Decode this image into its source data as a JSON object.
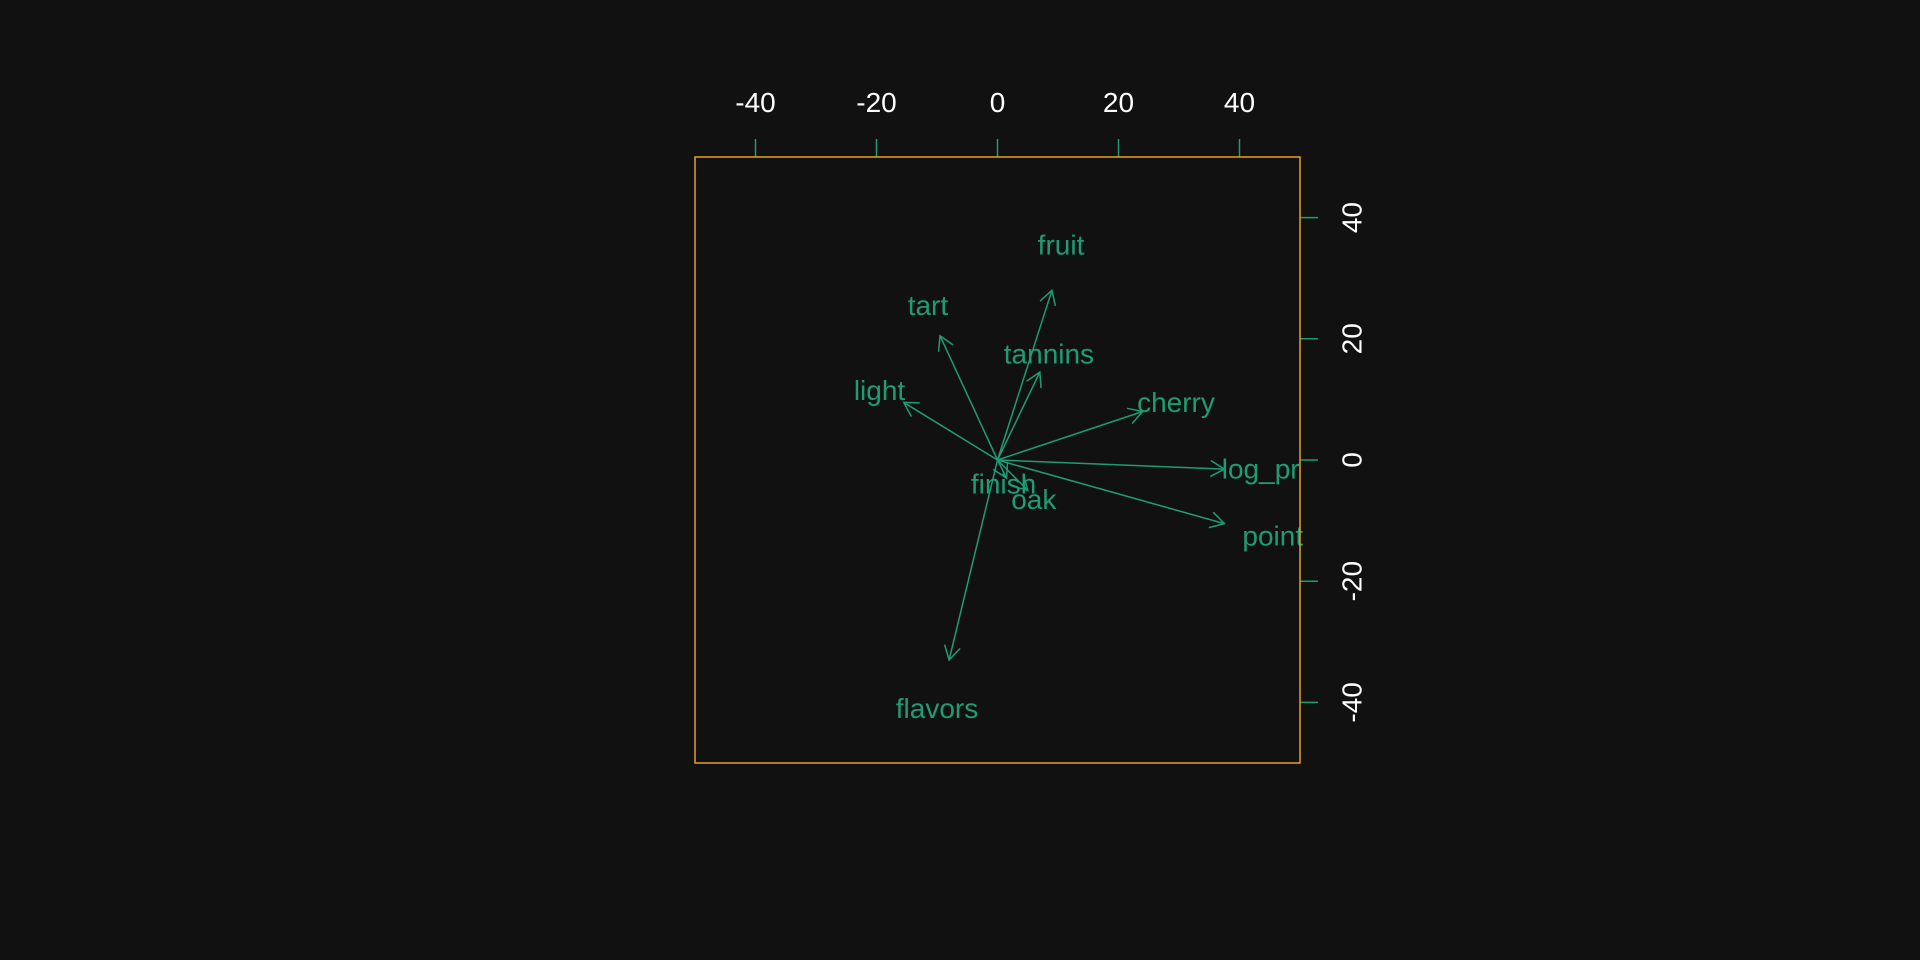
{
  "colors": {
    "background": "#111111",
    "frame": "#e6a020",
    "ticks": "#1f9c74",
    "tick_labels": "#ffffff",
    "arrows": "#1f9c74",
    "arrow_labels": "#1f9c74"
  },
  "chart_data": {
    "type": "biplot-vectors",
    "title": "",
    "xlabel": "",
    "ylabel": "",
    "xlim": [
      -50,
      50
    ],
    "ylim": [
      -50,
      50
    ],
    "x_axis_position": "top",
    "y_axis_position": "right",
    "x_ticks": [
      -40,
      -20,
      0,
      20,
      40
    ],
    "y_ticks": [
      -40,
      -20,
      0,
      20,
      40
    ],
    "x_tick_labels": [
      "-40",
      "-20",
      "0",
      "20",
      "40"
    ],
    "y_tick_labels": [
      "-40",
      "-20",
      "0",
      "20",
      "40"
    ],
    "grid": false,
    "vectors": [
      {
        "label": "fruit",
        "x": 9,
        "y": 28,
        "label_x": 10.5,
        "label_y": 35.5
      },
      {
        "label": "tart",
        "x": -9.5,
        "y": 20.5,
        "label_x": -11.5,
        "label_y": 25.5
      },
      {
        "label": "tannins",
        "x": 7,
        "y": 14.5,
        "label_x": 8.5,
        "label_y": 17.5
      },
      {
        "label": "light",
        "x": -15.5,
        "y": 9.5,
        "label_x": -19.5,
        "label_y": 11.5
      },
      {
        "label": "cherry",
        "x": 24,
        "y": 8,
        "label_x": 29.5,
        "label_y": 9.5
      },
      {
        "label": "log_pr",
        "x": 37.5,
        "y": -1.5,
        "label_x": 43.5,
        "label_y": -1.5
      },
      {
        "label": "finish",
        "x": 1.5,
        "y": -3,
        "label_x": 1,
        "label_y": -4
      },
      {
        "label": "oak",
        "x": 5,
        "y": -5,
        "label_x": 6,
        "label_y": -6.5
      },
      {
        "label": "point",
        "x": 37.5,
        "y": -10.5,
        "label_x": 45.5,
        "label_y": -12.5
      },
      {
        "label": "flavors",
        "x": -8,
        "y": -33,
        "label_x": -10,
        "label_y": -41
      }
    ]
  }
}
